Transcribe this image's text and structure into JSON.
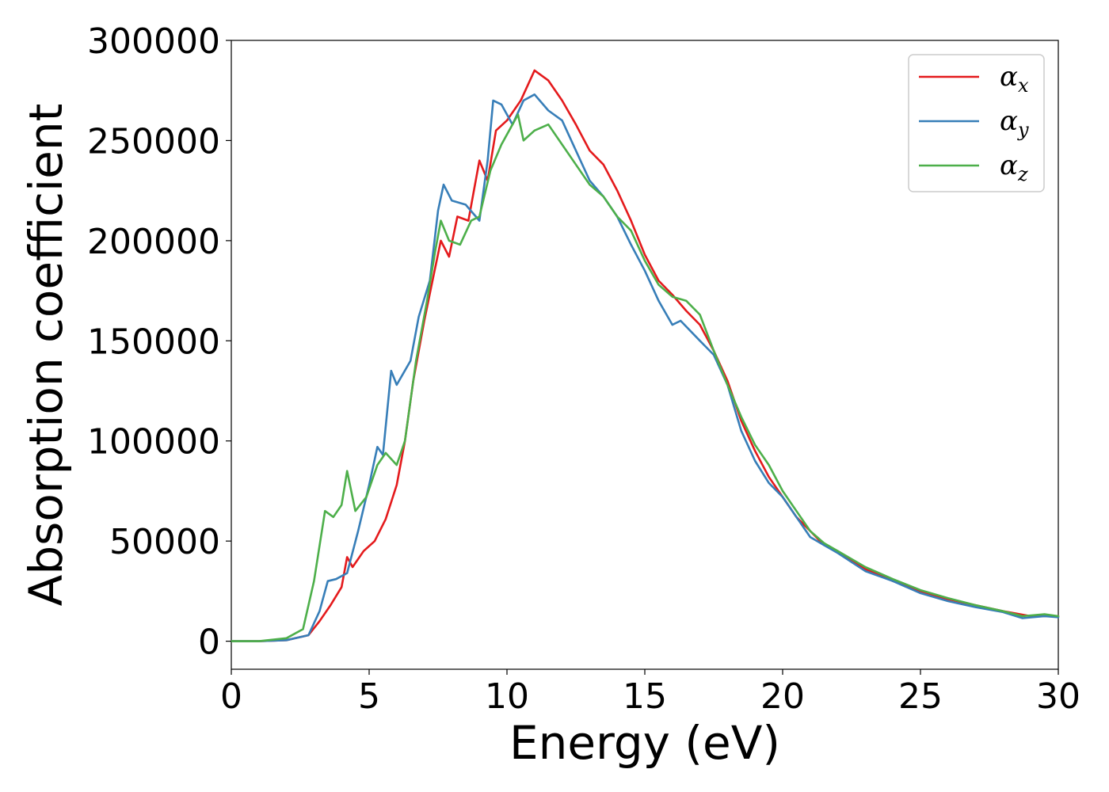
{
  "chart_data": {
    "type": "line",
    "xlabel": "Energy (eV)",
    "ylabel": "Absorption coefficient",
    "xlim": [
      0,
      30
    ],
    "ylim": [
      -14000,
      300000
    ],
    "xticks": [
      0,
      5,
      10,
      15,
      20,
      25,
      30
    ],
    "yticks": [
      0,
      50000,
      100000,
      150000,
      200000,
      250000,
      300000
    ],
    "xtick_labels": [
      "0",
      "5",
      "10",
      "15",
      "20",
      "25",
      "30"
    ],
    "ytick_labels": [
      "0",
      "50000",
      "100000",
      "150000",
      "200000",
      "250000",
      "300000"
    ],
    "grid": false,
    "legend_position": "top-right",
    "series": [
      {
        "name": "α",
        "subscript": "x",
        "color": "#e41a1c",
        "points": [
          [
            0,
            0
          ],
          [
            1,
            0
          ],
          [
            2,
            500
          ],
          [
            2.8,
            3000
          ],
          [
            3.2,
            10000
          ],
          [
            3.6,
            18000
          ],
          [
            4.0,
            27000
          ],
          [
            4.2,
            42000
          ],
          [
            4.4,
            37000
          ],
          [
            4.8,
            45000
          ],
          [
            5.2,
            50000
          ],
          [
            5.6,
            61000
          ],
          [
            6.0,
            78000
          ],
          [
            6.3,
            100000
          ],
          [
            6.6,
            130000
          ],
          [
            7.0,
            160000
          ],
          [
            7.3,
            180000
          ],
          [
            7.6,
            200000
          ],
          [
            7.9,
            192000
          ],
          [
            8.2,
            212000
          ],
          [
            8.6,
            210000
          ],
          [
            9.0,
            240000
          ],
          [
            9.3,
            230000
          ],
          [
            9.6,
            255000
          ],
          [
            10.0,
            260000
          ],
          [
            10.5,
            270000
          ],
          [
            11.0,
            285000
          ],
          [
            11.5,
            280000
          ],
          [
            12.0,
            270000
          ],
          [
            12.5,
            258000
          ],
          [
            13.0,
            245000
          ],
          [
            13.5,
            238000
          ],
          [
            14.0,
            225000
          ],
          [
            14.5,
            210000
          ],
          [
            15.0,
            193000
          ],
          [
            15.5,
            180000
          ],
          [
            16.0,
            173000
          ],
          [
            16.5,
            165000
          ],
          [
            17.0,
            158000
          ],
          [
            17.5,
            145000
          ],
          [
            18.0,
            130000
          ],
          [
            18.5,
            110000
          ],
          [
            19.0,
            95000
          ],
          [
            19.5,
            82000
          ],
          [
            20.0,
            72000
          ],
          [
            20.5,
            62000
          ],
          [
            21.0,
            55000
          ],
          [
            21.5,
            48000
          ],
          [
            22.0,
            45000
          ],
          [
            23.0,
            36000
          ],
          [
            24.0,
            30000
          ],
          [
            25.0,
            25000
          ],
          [
            26.0,
            21000
          ],
          [
            27.0,
            18000
          ],
          [
            28.0,
            15000
          ],
          [
            29.0,
            12500
          ],
          [
            29.5,
            12500
          ],
          [
            30.0,
            12500
          ]
        ]
      },
      {
        "name": "α",
        "subscript": "y",
        "color": "#377eb8",
        "points": [
          [
            0,
            0
          ],
          [
            1,
            0
          ],
          [
            2,
            500
          ],
          [
            2.8,
            3000
          ],
          [
            3.2,
            15000
          ],
          [
            3.5,
            30000
          ],
          [
            3.8,
            31000
          ],
          [
            4.2,
            34000
          ],
          [
            4.6,
            55000
          ],
          [
            5.0,
            78000
          ],
          [
            5.3,
            97000
          ],
          [
            5.5,
            93000
          ],
          [
            5.8,
            135000
          ],
          [
            6.0,
            128000
          ],
          [
            6.5,
            140000
          ],
          [
            6.8,
            162000
          ],
          [
            7.2,
            180000
          ],
          [
            7.5,
            215000
          ],
          [
            7.7,
            228000
          ],
          [
            8.0,
            220000
          ],
          [
            8.5,
            218000
          ],
          [
            9.0,
            210000
          ],
          [
            9.3,
            240000
          ],
          [
            9.5,
            270000
          ],
          [
            9.8,
            268000
          ],
          [
            10.2,
            258000
          ],
          [
            10.6,
            270000
          ],
          [
            11.0,
            273000
          ],
          [
            11.5,
            265000
          ],
          [
            12.0,
            260000
          ],
          [
            12.5,
            245000
          ],
          [
            13.0,
            230000
          ],
          [
            13.5,
            222000
          ],
          [
            14.0,
            212000
          ],
          [
            14.5,
            198000
          ],
          [
            15.0,
            185000
          ],
          [
            15.5,
            170000
          ],
          [
            16.0,
            158000
          ],
          [
            16.3,
            160000
          ],
          [
            17.0,
            150000
          ],
          [
            17.5,
            143000
          ],
          [
            18.0,
            128000
          ],
          [
            18.5,
            105000
          ],
          [
            19.0,
            90000
          ],
          [
            19.5,
            79000
          ],
          [
            20.0,
            72000
          ],
          [
            20.5,
            62000
          ],
          [
            21.0,
            52000
          ],
          [
            21.5,
            48000
          ],
          [
            22.0,
            44000
          ],
          [
            23.0,
            35000
          ],
          [
            24.0,
            30000
          ],
          [
            25.0,
            24000
          ],
          [
            26.0,
            20000
          ],
          [
            27.0,
            17000
          ],
          [
            28.0,
            14500
          ],
          [
            28.7,
            11500
          ],
          [
            29.5,
            12500
          ],
          [
            30.0,
            12000
          ]
        ]
      },
      {
        "name": "α",
        "subscript": "z",
        "color": "#4daf4a",
        "points": [
          [
            0,
            0
          ],
          [
            1,
            0
          ],
          [
            2,
            1500
          ],
          [
            2.6,
            6000
          ],
          [
            3.0,
            30000
          ],
          [
            3.4,
            65000
          ],
          [
            3.7,
            62000
          ],
          [
            4.0,
            68000
          ],
          [
            4.2,
            85000
          ],
          [
            4.5,
            65000
          ],
          [
            4.9,
            72000
          ],
          [
            5.3,
            88000
          ],
          [
            5.6,
            94000
          ],
          [
            6.0,
            88000
          ],
          [
            6.3,
            100000
          ],
          [
            6.7,
            140000
          ],
          [
            7.1,
            170000
          ],
          [
            7.4,
            195000
          ],
          [
            7.6,
            210000
          ],
          [
            7.9,
            200000
          ],
          [
            8.3,
            198000
          ],
          [
            8.7,
            210000
          ],
          [
            9.0,
            212000
          ],
          [
            9.4,
            235000
          ],
          [
            9.8,
            248000
          ],
          [
            10.4,
            263000
          ],
          [
            10.6,
            250000
          ],
          [
            11.0,
            255000
          ],
          [
            11.5,
            258000
          ],
          [
            12.0,
            248000
          ],
          [
            12.5,
            238000
          ],
          [
            13.0,
            228000
          ],
          [
            13.5,
            222000
          ],
          [
            14.0,
            212000
          ],
          [
            14.5,
            205000
          ],
          [
            15.0,
            190000
          ],
          [
            15.5,
            178000
          ],
          [
            16.0,
            172000
          ],
          [
            16.5,
            170000
          ],
          [
            17.0,
            163000
          ],
          [
            17.5,
            145000
          ],
          [
            18.0,
            128000
          ],
          [
            18.5,
            112000
          ],
          [
            19.0,
            98000
          ],
          [
            19.5,
            88000
          ],
          [
            20.0,
            75000
          ],
          [
            20.5,
            65000
          ],
          [
            21.0,
            55000
          ],
          [
            21.5,
            49000
          ],
          [
            22.0,
            45000
          ],
          [
            23.0,
            37000
          ],
          [
            24.0,
            31000
          ],
          [
            25.0,
            25500
          ],
          [
            26.0,
            21500
          ],
          [
            27.0,
            18000
          ],
          [
            28.0,
            15000
          ],
          [
            28.7,
            12500
          ],
          [
            29.5,
            13500
          ],
          [
            30.0,
            12500
          ]
        ]
      }
    ]
  }
}
